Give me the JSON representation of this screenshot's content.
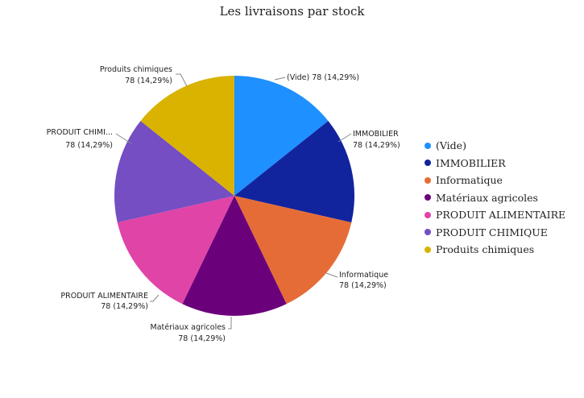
{
  "chart_data": {
    "type": "pie",
    "title": "Les livraisons par stock",
    "legend_position": "right",
    "slices": [
      {
        "name": "(Vide)",
        "short_label": "(Vide)",
        "value": 78,
        "value_label": "78 (14,29%)",
        "color": "#1e90ff"
      },
      {
        "name": "IMMOBILIER",
        "short_label": "IMMOBILIER",
        "value": 78,
        "value_label": "78 (14,29%)",
        "color": "#12239e"
      },
      {
        "name": "Informatique",
        "short_label": "Informatique",
        "value": 78,
        "value_label": "78 (14,29%)",
        "color": "#e66c37"
      },
      {
        "name": "Matériaux agricoles",
        "short_label": "Matériaux agricoles",
        "value": 78,
        "value_label": "78 (14,29%)",
        "color": "#6b007b"
      },
      {
        "name": "PRODUIT ALIMENTAIRE",
        "short_label": "PRODUIT ALIMENTAIRE",
        "value": 78,
        "value_label": "78 (14,29%)",
        "color": "#e044a7"
      },
      {
        "name": "PRODUIT CHIMIQUE",
        "short_label": "PRODUIT CHIMI...",
        "value": 78,
        "value_label": "78 (14,29%)",
        "color": "#744ec2"
      },
      {
        "name": "Produits chimiques",
        "short_label": "Produits chimiques",
        "value": 78,
        "value_label": "78 (14,29%)",
        "color": "#d9b300"
      }
    ]
  }
}
